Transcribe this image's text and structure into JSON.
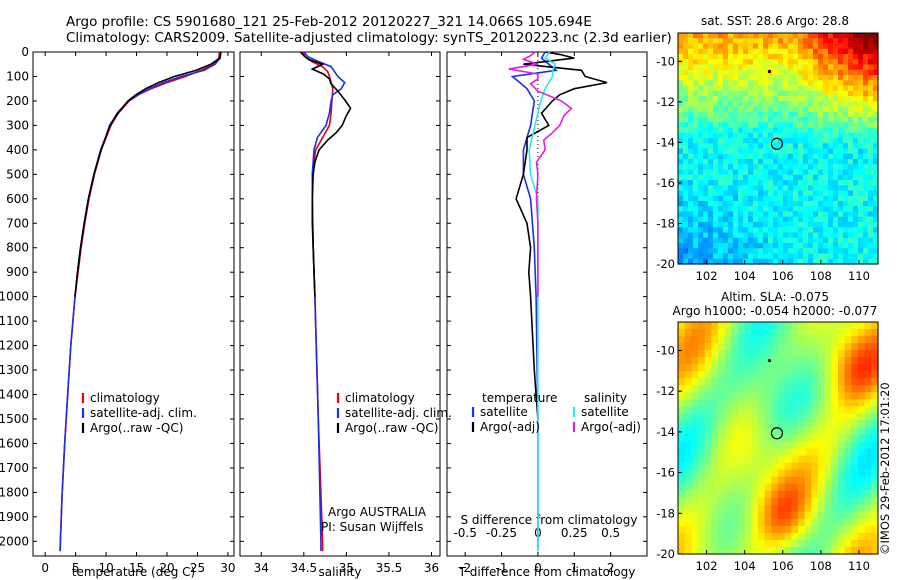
{
  "header": {
    "line1": "Argo profile: CS 5901680_121 25-Feb-2012 20120227_321 14.066S 105.694E",
    "line2": "Climatology: CARS2009. Satellite-adjusted climatology: synTS_20120223.nc (2.3d earlier)"
  },
  "colors": {
    "climatology": "#e0000f",
    "satellite": "#1d2ee8",
    "argo": "#000000",
    "salinity_satellite": "#2ee6ee",
    "salinity_argo": "#e020e0"
  },
  "legends": {
    "profile": [
      "climatology",
      "satellite-adj. clim.",
      "Argo(..raw -QC)"
    ],
    "diff_temperature_title": "temperature",
    "diff_salinity_title": "salinity",
    "diff_temperature": [
      "satellite",
      "Argo(-adj)"
    ],
    "diff_salinity": [
      "satellite",
      "Argo(-adj)"
    ]
  },
  "annotations": {
    "argo_program": "Argo AUSTRALIA",
    "pi": "PI: Susan Wijffels",
    "s_diff_label": "S difference from climatology",
    "credit": "©IMOS 29-Feb-2012 17:01:20"
  },
  "maps": {
    "sst": {
      "title": "sat. SST: 28.6  Argo: 28.8",
      "icon": "sst-map-raster"
    },
    "sla": {
      "title1": "Altim. SLA: -0.075",
      "title2": "Argo h1000: -0.054  h2000: -0.077",
      "icon": "sla-map-raster"
    },
    "xticks": [
      "102",
      "104",
      "106",
      "108",
      "110"
    ],
    "yticks": [
      "-10",
      "-12",
      "-14",
      "-16",
      "-18",
      "-20"
    ],
    "float_position": {
      "lon": 105.694,
      "lat": -14.066
    }
  },
  "chart_data": [
    {
      "type": "line",
      "name": "temperature-profile",
      "xlabel": "temperature (deg C)",
      "ylabel": "",
      "xlim": [
        -2,
        31
      ],
      "ylim": [
        2060,
        0
      ],
      "xticks": [
        "0",
        "5",
        "10",
        "15",
        "20",
        "25",
        "30"
      ],
      "yticks": [
        "0",
        "100",
        "200",
        "300",
        "400",
        "500",
        "600",
        "700",
        "800",
        "900",
        "1000",
        "1100",
        "1200",
        "1300",
        "1400",
        "1500",
        "1600",
        "1700",
        "1800",
        "1900",
        "2000"
      ],
      "series": [
        {
          "name": "climatology",
          "depth": [
            0,
            25,
            50,
            75,
            100,
            125,
            150,
            175,
            200,
            250,
            300,
            400,
            500,
            600,
            700,
            800,
            900,
            1000,
            1200,
            1400,
            1600,
            1800,
            2000,
            2040
          ],
          "values": [
            28.6,
            28.5,
            27.6,
            25.6,
            23.0,
            20.0,
            17.4,
            15.3,
            13.8,
            12.0,
            10.8,
            9.2,
            8.1,
            7.2,
            6.5,
            5.9,
            5.4,
            4.9,
            4.2,
            3.7,
            3.2,
            2.8,
            2.5,
            2.45
          ]
        },
        {
          "name": "satellite-adj. clim.",
          "depth": [
            0,
            25,
            50,
            75,
            100,
            125,
            150,
            175,
            200,
            250,
            300,
            400,
            500,
            600,
            700,
            800,
            900,
            1000,
            1200,
            1400,
            1600,
            1800,
            2000,
            2040
          ],
          "values": [
            28.8,
            28.7,
            27.9,
            26.1,
            22.3,
            19.4,
            17.1,
            15.2,
            13.7,
            11.8,
            10.7,
            9.1,
            8.0,
            7.1,
            6.4,
            5.8,
            5.3,
            4.9,
            4.2,
            3.7,
            3.2,
            2.8,
            2.5,
            2.45
          ]
        },
        {
          "name": "Argo(..raw -QC)",
          "depth": [
            0,
            10,
            25,
            50,
            75,
            100,
            125,
            150,
            175,
            200,
            250,
            300,
            350,
            400,
            500,
            600,
            700,
            800,
            900,
            1000
          ],
          "values": [
            28.8,
            28.8,
            28.7,
            27.2,
            24.8,
            21.2,
            18.6,
            16.5,
            14.9,
            13.6,
            11.9,
            10.6,
            9.9,
            9.2,
            8.0,
            7.1,
            6.4,
            5.8,
            5.3,
            4.9
          ]
        }
      ]
    },
    {
      "type": "line",
      "name": "salinity-profile",
      "xlabel": "salinity",
      "ylabel": "",
      "xlim": [
        33.75,
        36.1
      ],
      "ylim": [
        2060,
        0
      ],
      "xticks": [
        "34",
        "34.5",
        "35",
        "35.5",
        "36"
      ],
      "series": [
        {
          "name": "climatology",
          "depth": [
            0,
            20,
            40,
            60,
            80,
            100,
            125,
            150,
            200,
            250,
            300,
            350,
            400,
            500,
            600,
            800,
            1000,
            1500,
            2000,
            2040
          ],
          "values": [
            34.48,
            34.52,
            34.6,
            34.72,
            34.78,
            34.8,
            34.82,
            34.84,
            34.83,
            34.82,
            34.8,
            34.72,
            34.64,
            34.6,
            34.6,
            34.61,
            34.63,
            34.67,
            34.72,
            34.72
          ]
        },
        {
          "name": "satellite-adj. clim.",
          "depth": [
            0,
            20,
            40,
            60,
            80,
            100,
            125,
            150,
            175,
            200,
            250,
            300,
            350,
            400,
            500,
            600,
            800,
            1000,
            1500,
            2000,
            2040
          ],
          "values": [
            34.5,
            34.55,
            34.68,
            34.82,
            34.86,
            34.9,
            34.98,
            34.94,
            34.84,
            34.82,
            34.8,
            34.76,
            34.66,
            34.62,
            34.6,
            34.6,
            34.61,
            34.63,
            34.67,
            34.7,
            34.7
          ]
        },
        {
          "name": "Argo(..raw -QC)",
          "depth": [
            0,
            15,
            30,
            50,
            70,
            90,
            110,
            130,
            160,
            200,
            230,
            260,
            300,
            330,
            360,
            400,
            450,
            500,
            600,
            700,
            800,
            900,
            1000
          ],
          "values": [
            34.46,
            34.5,
            34.55,
            34.72,
            34.6,
            34.73,
            34.8,
            34.82,
            34.9,
            34.99,
            35.05,
            35.0,
            34.95,
            34.88,
            34.78,
            34.68,
            34.63,
            34.61,
            34.6,
            34.6,
            34.61,
            34.62,
            34.63
          ]
        }
      ]
    },
    {
      "type": "line",
      "name": "difference-profile",
      "xlabel": "T difference from climatology",
      "ylabel": "",
      "xlim": [
        -2.5,
        3.0
      ],
      "ylim": [
        2060,
        0
      ],
      "xticks": [
        "-2",
        "-1",
        "0",
        "1",
        "2"
      ],
      "secondary_xlabel": "S difference from climatology",
      "secondary_xticks": [
        "-0.5",
        "-0.25",
        "0",
        "0.25",
        "0.5"
      ],
      "series": [
        {
          "name": "temperature satellite",
          "depth": [
            0,
            25,
            50,
            75,
            100,
            150,
            200,
            300,
            400,
            500,
            600,
            800,
            1000,
            1500,
            2000,
            2040
          ],
          "values": [
            0.2,
            0.1,
            0.3,
            0.5,
            -0.7,
            -0.3,
            -0.1,
            -0.2,
            -0.4,
            -0.4,
            -0.2,
            -0.1,
            -0.05,
            0,
            0,
            0
          ]
        },
        {
          "name": "temperature Argo(-adj)",
          "depth": [
            0,
            10,
            25,
            50,
            75,
            100,
            125,
            150,
            175,
            200,
            250,
            300,
            350,
            400,
            500,
            600,
            700,
            800,
            900,
            1000,
            1300,
            1500
          ],
          "values": [
            0.2,
            0.6,
            1.0,
            -0.4,
            1.2,
            1.3,
            1.9,
            1.0,
            0.6,
            0.4,
            0.1,
            0.3,
            -0.3,
            -0.3,
            -0.4,
            -0.6,
            -0.3,
            -0.2,
            -0.25,
            -0.2,
            -0.1,
            0
          ]
        },
        {
          "name": "salinity satellite",
          "depth": [
            0,
            25,
            50,
            75,
            100,
            150,
            200,
            300,
            400,
            500,
            600,
            800,
            1000,
            1500,
            2000,
            2040
          ],
          "values": [
            0.08,
            0.05,
            0.12,
            0.1,
            0.1,
            0.05,
            0.02,
            -0.02,
            -0.06,
            -0.05,
            0.0,
            0.0,
            0.0,
            0.0,
            0.0,
            0.0
          ]
        },
        {
          "name": "salinity Argo(-adj)",
          "depth": [
            0,
            15,
            30,
            50,
            70,
            90,
            110,
            130,
            160,
            200,
            230,
            260,
            300,
            330,
            360,
            400,
            450,
            500,
            600,
            700,
            800,
            900,
            1000
          ],
          "values": [
            -0.02,
            -0.05,
            -0.1,
            0.0,
            -0.2,
            0.0,
            0.0,
            -0.05,
            0.0,
            0.16,
            0.23,
            0.18,
            0.15,
            0.1,
            0.04,
            0.05,
            -0.01,
            -0.0,
            -0.01,
            0.0,
            0.0,
            0.0,
            0.0
          ]
        }
      ]
    }
  ]
}
